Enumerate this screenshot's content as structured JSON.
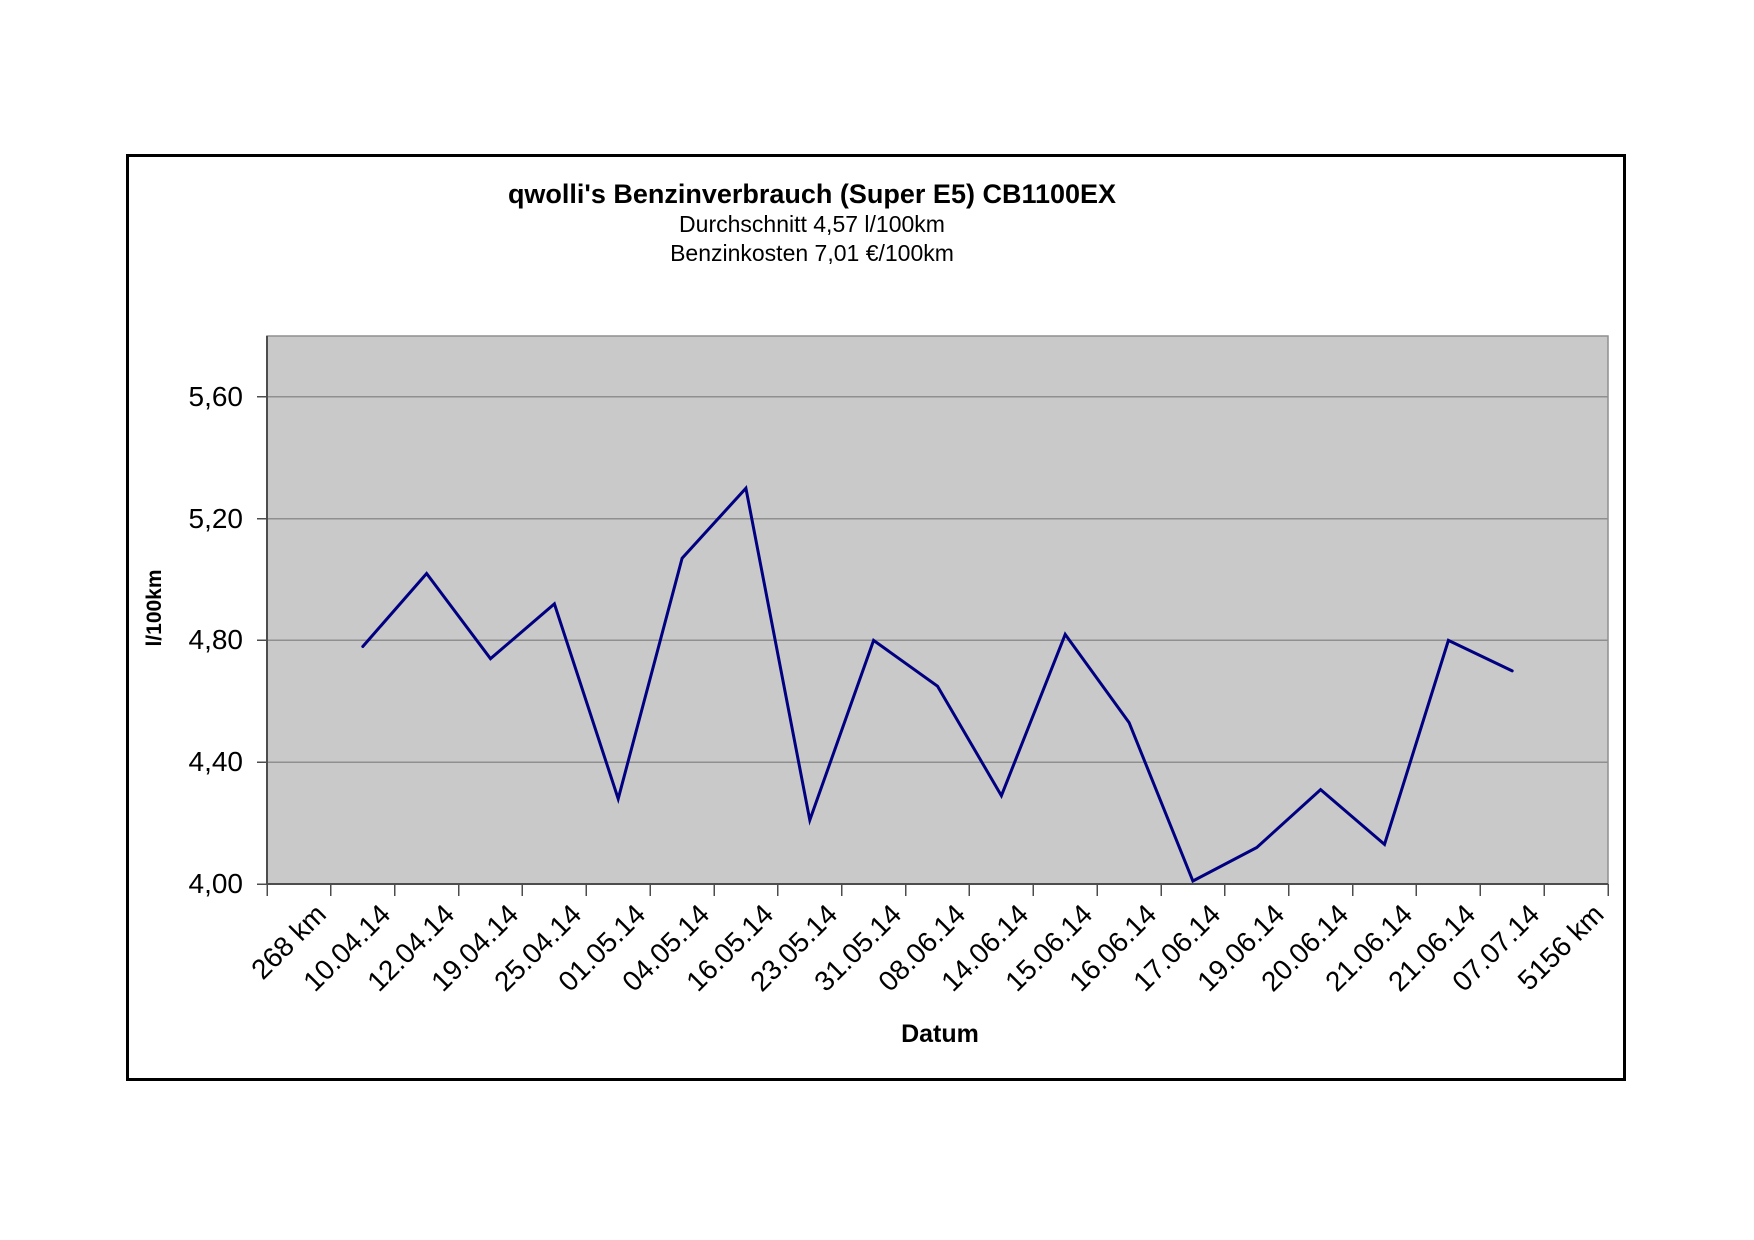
{
  "chart_data": {
    "type": "line",
    "title": "qwolli's Benzinverbrauch (Super E5) CB1100EX",
    "subtitle1": "Durchschnitt 4,57 l/100km",
    "subtitle2": "Benzinkosten 7,01 €/100km",
    "xlabel": "Datum",
    "ylabel": "l/100km",
    "categories": [
      "268 km",
      "10.04.14",
      "12.04.14",
      "19.04.14",
      "25.04.14",
      "01.05.14",
      "04.05.14",
      "16.05.14",
      "23.05.14",
      "31.05.14",
      "08.06.14",
      "14.06.14",
      "15.06.14",
      "16.06.14",
      "17.06.14",
      "19.06.14",
      "20.06.14",
      "21.06.14",
      "21.06.14",
      "07.07.14",
      "5156 km"
    ],
    "values": [
      null,
      4.78,
      5.02,
      4.74,
      4.92,
      4.28,
      5.07,
      5.3,
      4.21,
      4.8,
      4.65,
      4.29,
      4.82,
      4.53,
      4.01,
      4.12,
      4.31,
      4.13,
      4.8,
      4.7,
      null
    ],
    "ylim": [
      4.0,
      5.8
    ],
    "yticks": [
      4.0,
      4.4,
      4.8,
      5.2,
      5.6
    ],
    "ytick_labels": [
      "4,00",
      "4,40",
      "4,80",
      "5,20",
      "5,60"
    ],
    "grid": true,
    "legend": "none",
    "line_color": "#000080",
    "plot_bg": "#c9c9c9",
    "grid_color": "#8f8f8f",
    "axis_color": "#4d4d4d"
  }
}
